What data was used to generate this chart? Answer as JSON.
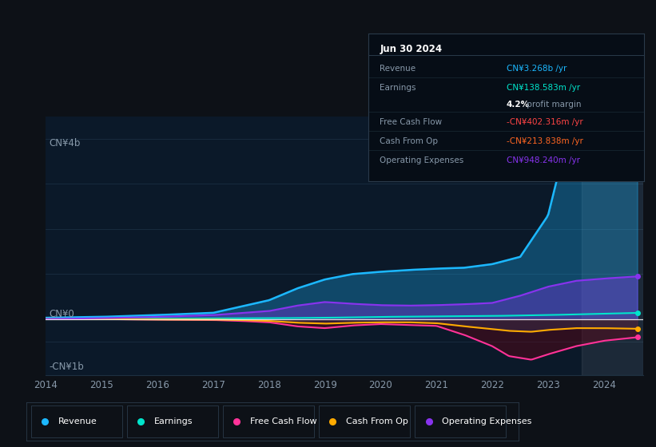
{
  "bg_color": "#0d1117",
  "chart_bg": "#0b1929",
  "series_colors": {
    "revenue": "#1cb8ff",
    "earnings": "#00e5cc",
    "free_cash_flow": "#ff3399",
    "cash_from_op": "#ffaa00",
    "operating_expenses": "#8833ee"
  },
  "legend": [
    {
      "label": "Revenue",
      "color": "#1cb8ff"
    },
    {
      "label": "Earnings",
      "color": "#00e5cc"
    },
    {
      "label": "Free Cash Flow",
      "color": "#ff3399"
    },
    {
      "label": "Cash From Op",
      "color": "#ffaa00"
    },
    {
      "label": "Operating Expenses",
      "color": "#8833ee"
    }
  ],
  "x_ticks": [
    2014,
    2015,
    2016,
    2017,
    2018,
    2019,
    2020,
    2021,
    2022,
    2023,
    2024
  ],
  "ylim": [
    -1.25,
    4.5
  ],
  "y_label_top": "CN¥4b",
  "y_label_zero": "CN¥0",
  "y_label_bottom": "-CN¥1b",
  "tooltip_title": "Jun 30 2024",
  "tooltip_rows": [
    {
      "label": "Revenue",
      "value": "CN¥3.268b /yr",
      "val_color": "#1cb8ff",
      "sub": null
    },
    {
      "label": "Earnings",
      "value": "CN¥138.583m /yr",
      "val_color": "#00e5cc",
      "sub": "4.2% profit margin"
    },
    {
      "label": "Free Cash Flow",
      "value": "-CN¥402.316m /yr",
      "val_color": "#ff4444",
      "sub": null
    },
    {
      "label": "Cash From Op",
      "value": "-CN¥213.838m /yr",
      "val_color": "#ff6622",
      "sub": null
    },
    {
      "label": "Operating Expenses",
      "value": "CN¥948.240m /yr",
      "val_color": "#8833ee",
      "sub": null
    }
  ]
}
